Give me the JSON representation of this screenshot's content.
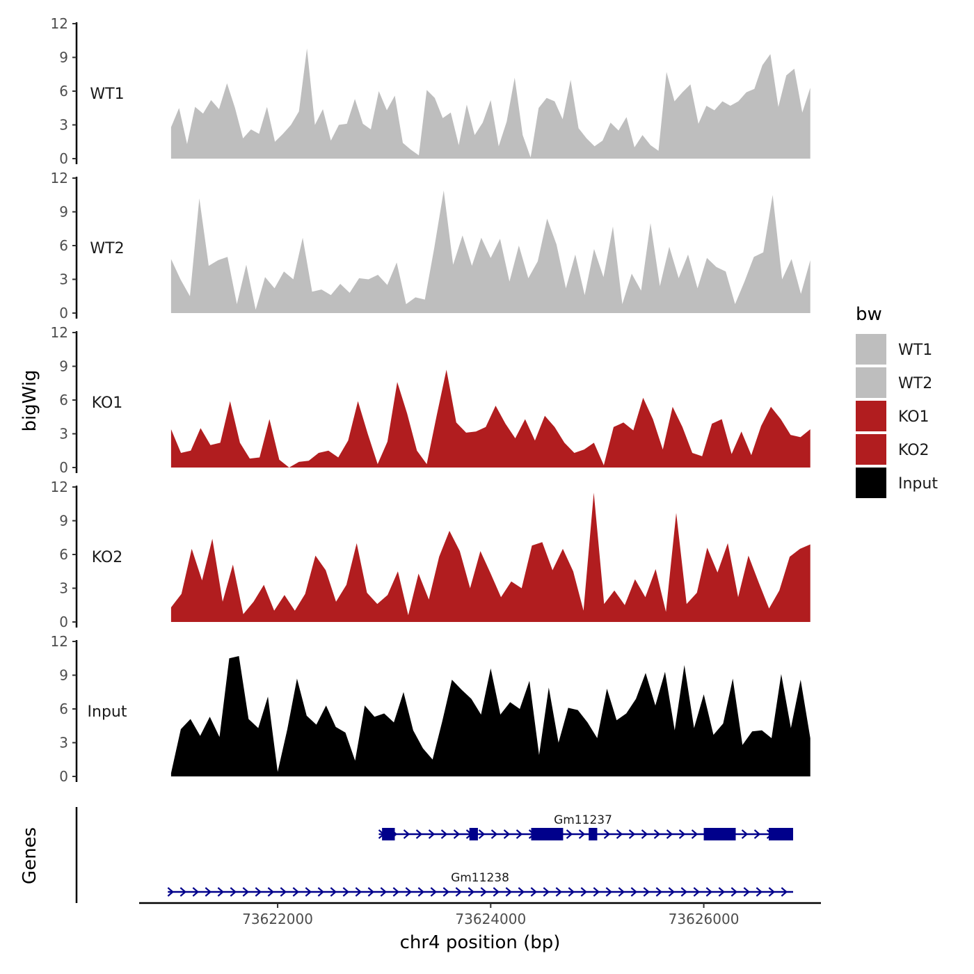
{
  "chart_data": {
    "type": "area",
    "title": "",
    "xlabel": "chr4 position (bp)",
    "ylabel": "bigWig",
    "genes_label": "Genes",
    "xlim": [
      73620700,
      73627100
    ],
    "xticks": [
      73622000,
      73624000,
      73626000
    ],
    "xtick_labels": [
      "73622000",
      "73624000",
      "73626000"
    ],
    "ylim": [
      0,
      12
    ],
    "yticks": [
      0,
      3,
      6,
      9,
      12
    ],
    "ytick_labels": [
      "0",
      "3",
      "6",
      "9",
      "12"
    ],
    "series_x": {
      "start": 73621000,
      "end": 73627000
    },
    "series": [
      {
        "name": "WT1",
        "color": "#bebebe",
        "values": [
          2.8,
          4.5,
          1.3,
          4.6,
          4.0,
          5.2,
          4.4,
          6.7,
          4.5,
          1.8,
          2.6,
          2.2,
          4.6,
          1.5,
          2.2,
          3.0,
          4.2,
          9.8,
          3.0,
          4.4,
          1.6,
          3.0,
          3.1,
          5.3,
          3.1,
          2.6,
          6.0,
          4.3,
          5.6,
          1.4,
          0.8,
          0.3,
          6.1,
          5.4,
          3.6,
          4.1,
          1.2,
          4.8,
          2.1,
          3.2,
          5.2,
          1.1,
          3.3,
          7.2,
          2.1,
          0.1,
          4.5,
          5.4,
          5.1,
          3.5,
          7.0,
          2.7,
          1.8,
          1.1,
          1.6,
          3.2,
          2.5,
          3.7,
          1.0,
          2.1,
          1.2,
          0.7,
          7.7,
          5.1,
          5.9,
          6.6,
          3.1,
          4.7,
          4.3,
          5.1,
          4.7,
          5.1,
          5.9,
          6.2,
          8.3,
          9.3,
          4.6,
          7.4,
          8.0,
          4.1,
          6.3
        ],
        "fill_y": [
          0,
          0,
          0,
          0,
          0
        ],
        "peak_labels": []
      },
      {
        "name": "WT2",
        "color": "#bebebe",
        "values": [
          4.8,
          3.0,
          1.5,
          10.2,
          4.2,
          4.7,
          5.0,
          0.8,
          4.3,
          0.3,
          3.2,
          2.2,
          3.7,
          3.0,
          6.7,
          1.9,
          2.1,
          1.6,
          2.6,
          1.8,
          3.1,
          3.0,
          3.4,
          2.5,
          4.5,
          0.8,
          1.4,
          1.2,
          5.8,
          10.9,
          4.3,
          6.9,
          4.2,
          6.7,
          4.9,
          6.6,
          2.8,
          6.0,
          3.1,
          4.6,
          8.4,
          6.1,
          2.2,
          5.2,
          1.6,
          5.7,
          3.2,
          7.7,
          0.8,
          3.5,
          2.0,
          8.0,
          2.4,
          5.9,
          3.1,
          5.2,
          2.2,
          4.9,
          4.1,
          3.7,
          0.8,
          2.8,
          5.0,
          5.4,
          10.5,
          3.0,
          4.8,
          1.7,
          4.7
        ],
        "peak_labels": []
      },
      {
        "name": "KO1",
        "color": "#b11d1f",
        "values": [
          3.4,
          1.3,
          1.5,
          3.5,
          2.0,
          2.2,
          5.9,
          2.2,
          0.8,
          0.9,
          4.3,
          0.7,
          0.0,
          0.5,
          0.6,
          1.3,
          1.5,
          0.9,
          2.4,
          5.9,
          3.0,
          0.3,
          2.3,
          7.6,
          4.8,
          1.5,
          0.3,
          4.6,
          8.7,
          4.0,
          3.1,
          3.2,
          3.6,
          5.5,
          3.9,
          2.6,
          4.3,
          2.4,
          4.6,
          3.6,
          2.2,
          1.3,
          1.6,
          2.2,
          0.2,
          3.6,
          4.0,
          3.3,
          6.2,
          4.3,
          1.6,
          5.4,
          3.6,
          1.3,
          1.0,
          3.9,
          4.3,
          1.2,
          3.2,
          1.1,
          3.7,
          5.4,
          4.3,
          2.9,
          2.7,
          3.4
        ],
        "peak_labels": []
      },
      {
        "name": "KO2",
        "color": "#b11d1f",
        "values": [
          1.3,
          2.5,
          6.5,
          3.7,
          7.4,
          1.8,
          5.1,
          0.7,
          1.8,
          3.3,
          1.0,
          2.4,
          1.0,
          2.5,
          5.9,
          4.6,
          1.8,
          3.3,
          7.0,
          2.6,
          1.6,
          2.4,
          4.5,
          0.6,
          4.3,
          2.0,
          5.8,
          8.1,
          6.3,
          3.0,
          6.3,
          4.3,
          2.2,
          3.6,
          3.0,
          6.8,
          7.1,
          4.6,
          6.5,
          4.5,
          1.0,
          11.5,
          1.6,
          2.8,
          1.5,
          3.8,
          2.2,
          4.7,
          0.9,
          9.7,
          1.6,
          2.6,
          6.6,
          4.4,
          7.0,
          2.2,
          5.9,
          3.5,
          1.2,
          2.8,
          5.8,
          6.5,
          6.9
        ],
        "peak_labels": []
      },
      {
        "name": "Input",
        "color": "#000000",
        "values": [
          0.3,
          4.2,
          5.1,
          3.6,
          5.3,
          3.5,
          10.5,
          10.7,
          5.1,
          4.3,
          7.1,
          0.4,
          4.2,
          8.7,
          5.4,
          4.6,
          6.3,
          4.4,
          3.9,
          1.4,
          6.3,
          5.3,
          5.6,
          4.8,
          7.5,
          4.1,
          2.5,
          1.5,
          4.9,
          8.6,
          7.7,
          6.9,
          5.5,
          9.6,
          5.5,
          6.6,
          6.0,
          8.5,
          1.9,
          7.9,
          3.0,
          6.1,
          5.9,
          4.8,
          3.4,
          7.8,
          5.0,
          5.6,
          6.9,
          9.2,
          6.3,
          9.3,
          4.1,
          9.9,
          4.3,
          7.3,
          3.7,
          4.7,
          8.7,
          2.8,
          4.0,
          4.1,
          3.4,
          9.1,
          4.3,
          8.6,
          3.4
        ],
        "peak_labels": []
      }
    ],
    "legend": {
      "title": "bw",
      "placement": "right",
      "entries": [
        {
          "label": "WT1",
          "color": "#bebebe"
        },
        {
          "label": "WT2",
          "color": "#bebebe"
        },
        {
          "label": "KO1",
          "color": "#b11d1f"
        },
        {
          "label": "KO2",
          "color": "#b11d1f"
        },
        {
          "label": "Input",
          "color": "#000000"
        }
      ]
    },
    "genes": [
      {
        "name": "Gm11237",
        "start": 73622950,
        "end": 73627100,
        "strand": "+",
        "color": "#00008b",
        "exons": [
          [
            73622980,
            73623100
          ],
          [
            73623800,
            73623880
          ],
          [
            73624380,
            73624680
          ],
          [
            73624920,
            73625000
          ],
          [
            73626000,
            73626300
          ],
          [
            73626610,
            73627050
          ]
        ]
      },
      {
        "name": "Gm11238",
        "start": 73620970,
        "end": 73627100,
        "strand": "+",
        "color": "#00008b",
        "exons": []
      }
    ]
  }
}
